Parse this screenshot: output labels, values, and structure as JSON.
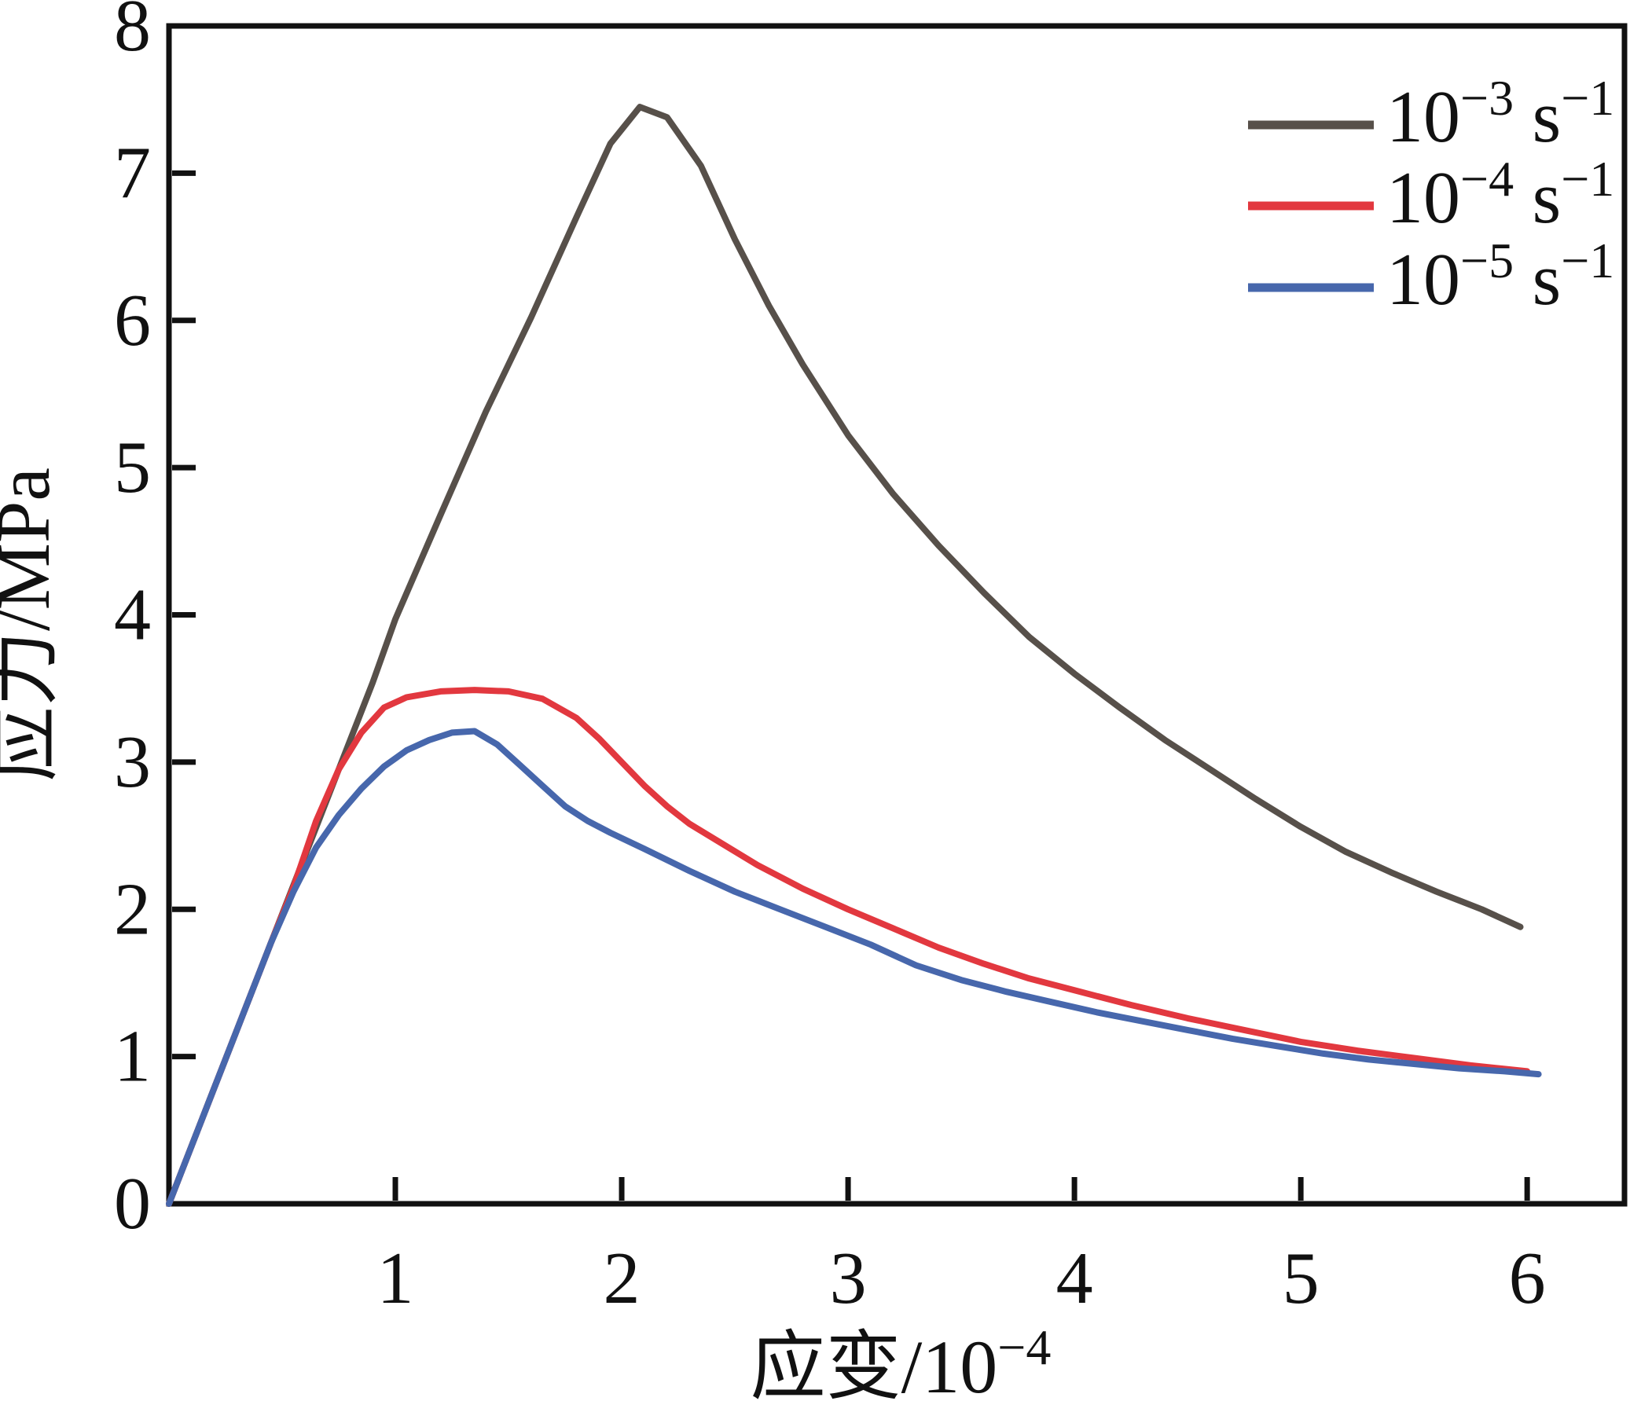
{
  "chart_data": {
    "type": "line",
    "title": "",
    "xlabel_base": "应变/10",
    "xlabel_exp": "−4",
    "ylabel": "应力/MPa",
    "xlim": [
      0,
      6.43
    ],
    "ylim": [
      0,
      8
    ],
    "grid": false,
    "frame": "box",
    "legend_position": "top-right",
    "text_color": "#111111",
    "x_tick_values": [
      1,
      2,
      3,
      4,
      5,
      6
    ],
    "x_tick_labels": [
      "1",
      "2",
      "3",
      "4",
      "5",
      "6"
    ],
    "y_tick_values": [
      0,
      1,
      2,
      3,
      4,
      5,
      6,
      7,
      8
    ],
    "y_tick_labels": [
      "0",
      "1",
      "2",
      "3",
      "4",
      "5",
      "6",
      "7",
      "8"
    ],
    "y_tick_mark_values": [
      1,
      2,
      3,
      4,
      5,
      6,
      7
    ],
    "series": [
      {
        "name": "strain-rate-1e-3",
        "legend_base": "10",
        "legend_exp": "−3",
        "legend_unit": " s",
        "legend_unit_exp": "−1",
        "color": "#57504a",
        "points": [
          [
            0,
            0
          ],
          [
            0.15,
            0.59
          ],
          [
            0.3,
            1.18
          ],
          [
            0.45,
            1.77
          ],
          [
            0.6,
            2.36
          ],
          [
            0.75,
            2.95
          ],
          [
            0.9,
            3.54
          ],
          [
            1.0,
            3.97
          ],
          [
            1.2,
            4.68
          ],
          [
            1.4,
            5.38
          ],
          [
            1.6,
            6.02
          ],
          [
            1.8,
            6.7
          ],
          [
            1.95,
            7.2
          ],
          [
            2.08,
            7.45
          ],
          [
            2.2,
            7.38
          ],
          [
            2.35,
            7.05
          ],
          [
            2.5,
            6.55
          ],
          [
            2.65,
            6.1
          ],
          [
            2.8,
            5.7
          ],
          [
            3.0,
            5.22
          ],
          [
            3.2,
            4.82
          ],
          [
            3.4,
            4.47
          ],
          [
            3.6,
            4.15
          ],
          [
            3.8,
            3.85
          ],
          [
            4.0,
            3.6
          ],
          [
            4.2,
            3.37
          ],
          [
            4.4,
            3.15
          ],
          [
            4.6,
            2.95
          ],
          [
            4.8,
            2.75
          ],
          [
            5.0,
            2.56
          ],
          [
            5.2,
            2.39
          ],
          [
            5.4,
            2.25
          ],
          [
            5.6,
            2.12
          ],
          [
            5.8,
            2.0
          ],
          [
            5.97,
            1.88
          ]
        ]
      },
      {
        "name": "strain-rate-1e-4",
        "legend_base": "10",
        "legend_exp": "−4",
        "legend_unit": " s",
        "legend_unit_exp": "−1",
        "color": "#e2383f",
        "points": [
          [
            0,
            0
          ],
          [
            0.15,
            0.59
          ],
          [
            0.3,
            1.18
          ],
          [
            0.45,
            1.77
          ],
          [
            0.55,
            2.15
          ],
          [
            0.65,
            2.6
          ],
          [
            0.75,
            2.95
          ],
          [
            0.85,
            3.2
          ],
          [
            0.95,
            3.37
          ],
          [
            1.05,
            3.44
          ],
          [
            1.2,
            3.48
          ],
          [
            1.35,
            3.49
          ],
          [
            1.5,
            3.48
          ],
          [
            1.65,
            3.43
          ],
          [
            1.8,
            3.3
          ],
          [
            1.9,
            3.16
          ],
          [
            2.0,
            3.0
          ],
          [
            2.1,
            2.84
          ],
          [
            2.2,
            2.7
          ],
          [
            2.3,
            2.58
          ],
          [
            2.45,
            2.44
          ],
          [
            2.6,
            2.3
          ],
          [
            2.8,
            2.14
          ],
          [
            3.0,
            2.0
          ],
          [
            3.2,
            1.87
          ],
          [
            3.4,
            1.74
          ],
          [
            3.6,
            1.63
          ],
          [
            3.8,
            1.53
          ],
          [
            4.0,
            1.45
          ],
          [
            4.25,
            1.35
          ],
          [
            4.5,
            1.26
          ],
          [
            4.75,
            1.18
          ],
          [
            5.0,
            1.1
          ],
          [
            5.25,
            1.04
          ],
          [
            5.5,
            0.99
          ],
          [
            5.75,
            0.94
          ],
          [
            6.0,
            0.9
          ]
        ]
      },
      {
        "name": "strain-rate-1e-5",
        "legend_base": "10",
        "legend_exp": "−5",
        "legend_unit": " s",
        "legend_unit_exp": "−1",
        "color": "#4767ac",
        "points": [
          [
            0,
            0
          ],
          [
            0.15,
            0.59
          ],
          [
            0.3,
            1.18
          ],
          [
            0.45,
            1.77
          ],
          [
            0.55,
            2.12
          ],
          [
            0.65,
            2.42
          ],
          [
            0.75,
            2.64
          ],
          [
            0.85,
            2.82
          ],
          [
            0.95,
            2.97
          ],
          [
            1.05,
            3.08
          ],
          [
            1.15,
            3.15
          ],
          [
            1.25,
            3.2
          ],
          [
            1.35,
            3.21
          ],
          [
            1.45,
            3.12
          ],
          [
            1.55,
            2.98
          ],
          [
            1.65,
            2.84
          ],
          [
            1.75,
            2.7
          ],
          [
            1.85,
            2.6
          ],
          [
            1.95,
            2.52
          ],
          [
            2.1,
            2.41
          ],
          [
            2.3,
            2.26
          ],
          [
            2.5,
            2.12
          ],
          [
            2.7,
            2.0
          ],
          [
            2.9,
            1.88
          ],
          [
            3.1,
            1.76
          ],
          [
            3.3,
            1.62
          ],
          [
            3.5,
            1.52
          ],
          [
            3.7,
            1.44
          ],
          [
            3.9,
            1.37
          ],
          [
            4.1,
            1.3
          ],
          [
            4.3,
            1.24
          ],
          [
            4.5,
            1.18
          ],
          [
            4.7,
            1.12
          ],
          [
            4.9,
            1.07
          ],
          [
            5.1,
            1.02
          ],
          [
            5.3,
            0.98
          ],
          [
            5.5,
            0.95
          ],
          [
            5.7,
            0.92
          ],
          [
            5.9,
            0.9
          ],
          [
            6.05,
            0.88
          ]
        ]
      }
    ]
  }
}
